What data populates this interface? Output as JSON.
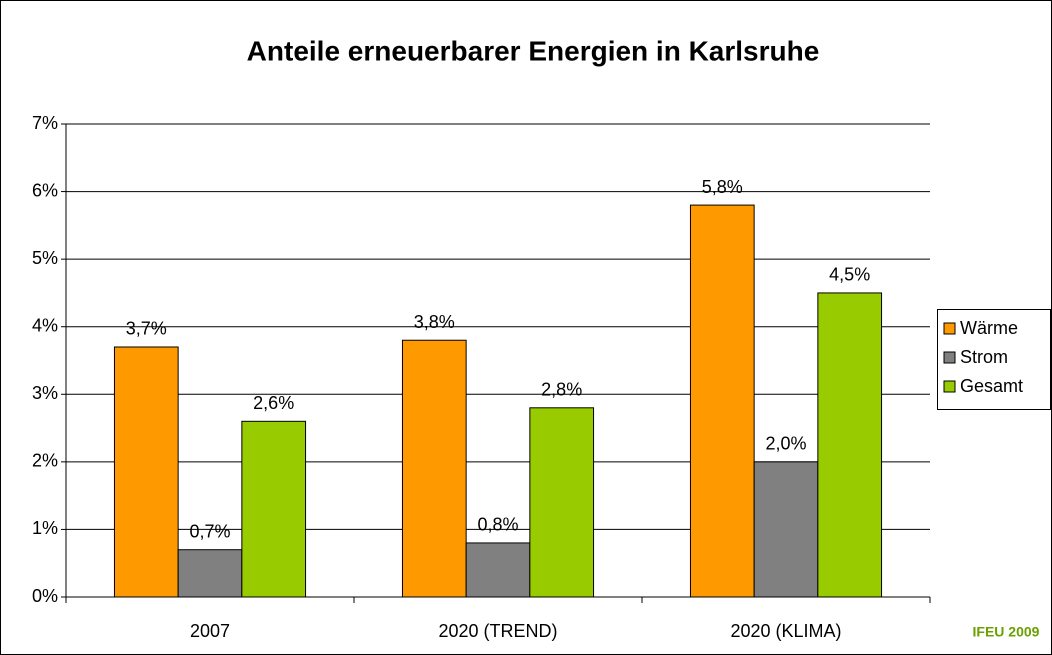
{
  "chart_data": {
    "type": "bar",
    "title": "Anteile erneuerbarer Energien in Karlsruhe",
    "source": "IFEU 2009",
    "categories": [
      "2007",
      "2020 (TREND)",
      "2020 (KLIMA)"
    ],
    "series": [
      {
        "name": "Wärme",
        "color": "#ff9900",
        "values": [
          3.7,
          3.8,
          5.8
        ],
        "value_labels": [
          "3,7%",
          "3,8%",
          "5,8%"
        ]
      },
      {
        "name": "Strom",
        "color": "#808080",
        "values": [
          0.7,
          0.8,
          2.0
        ],
        "value_labels": [
          "0,7%",
          "0,8%",
          "2,0%"
        ]
      },
      {
        "name": "Gesamt",
        "color": "#99cc00",
        "values": [
          2.6,
          2.8,
          4.5
        ],
        "value_labels": [
          "2,6%",
          "2,8%",
          "4,5%"
        ]
      }
    ],
    "ylim": [
      0,
      7
    ],
    "yticks": [
      {
        "value": 0,
        "label": "0%"
      },
      {
        "value": 1,
        "label": "1%"
      },
      {
        "value": 2,
        "label": "2%"
      },
      {
        "value": 3,
        "label": "3%"
      },
      {
        "value": 4,
        "label": "4%"
      },
      {
        "value": 5,
        "label": "5%"
      },
      {
        "value": 6,
        "label": "6%"
      },
      {
        "value": 7,
        "label": "7%"
      }
    ],
    "grid": true,
    "legend": "right"
  }
}
